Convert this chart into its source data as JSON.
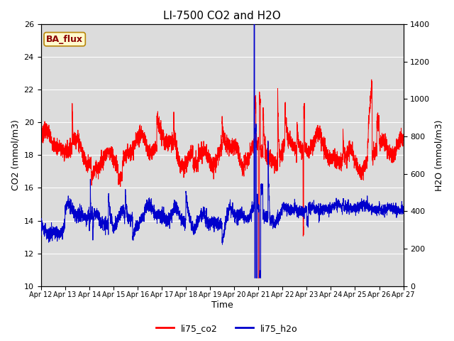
{
  "title": "LI-7500 CO2 and H2O",
  "xlabel": "Time",
  "ylabel_left": "CO2 (mmol/m3)",
  "ylabel_right": "H2O (mmol/m3)",
  "ylim_left": [
    10,
    26
  ],
  "ylim_right": [
    0,
    1400
  ],
  "yticks_left": [
    10,
    12,
    14,
    16,
    18,
    20,
    22,
    24,
    26
  ],
  "yticks_right": [
    0,
    200,
    400,
    600,
    800,
    1000,
    1200,
    1400
  ],
  "x_tick_labels": [
    "Apr 12",
    "Apr 13",
    "Apr 14",
    "Apr 15",
    "Apr 16",
    "Apr 17",
    "Apr 18",
    "Apr 19",
    "Apr 20",
    "Apr 21",
    "Apr 22",
    "Apr 23",
    "Apr 24",
    "Apr 25",
    "Apr 26",
    "Apr 27"
  ],
  "annotation_text": "BA_flux",
  "annotation_color": "#8B0000",
  "annotation_bg": "#FFFACD",
  "annotation_border": "#B8860B",
  "co2_color": "#FF0000",
  "h2o_color": "#0000CC",
  "background_color": "#DCDCDC",
  "legend_co2": "li75_co2",
  "legend_h2o": "li75_h2o",
  "title_fontsize": 11,
  "axis_label_fontsize": 9,
  "tick_fontsize": 8
}
